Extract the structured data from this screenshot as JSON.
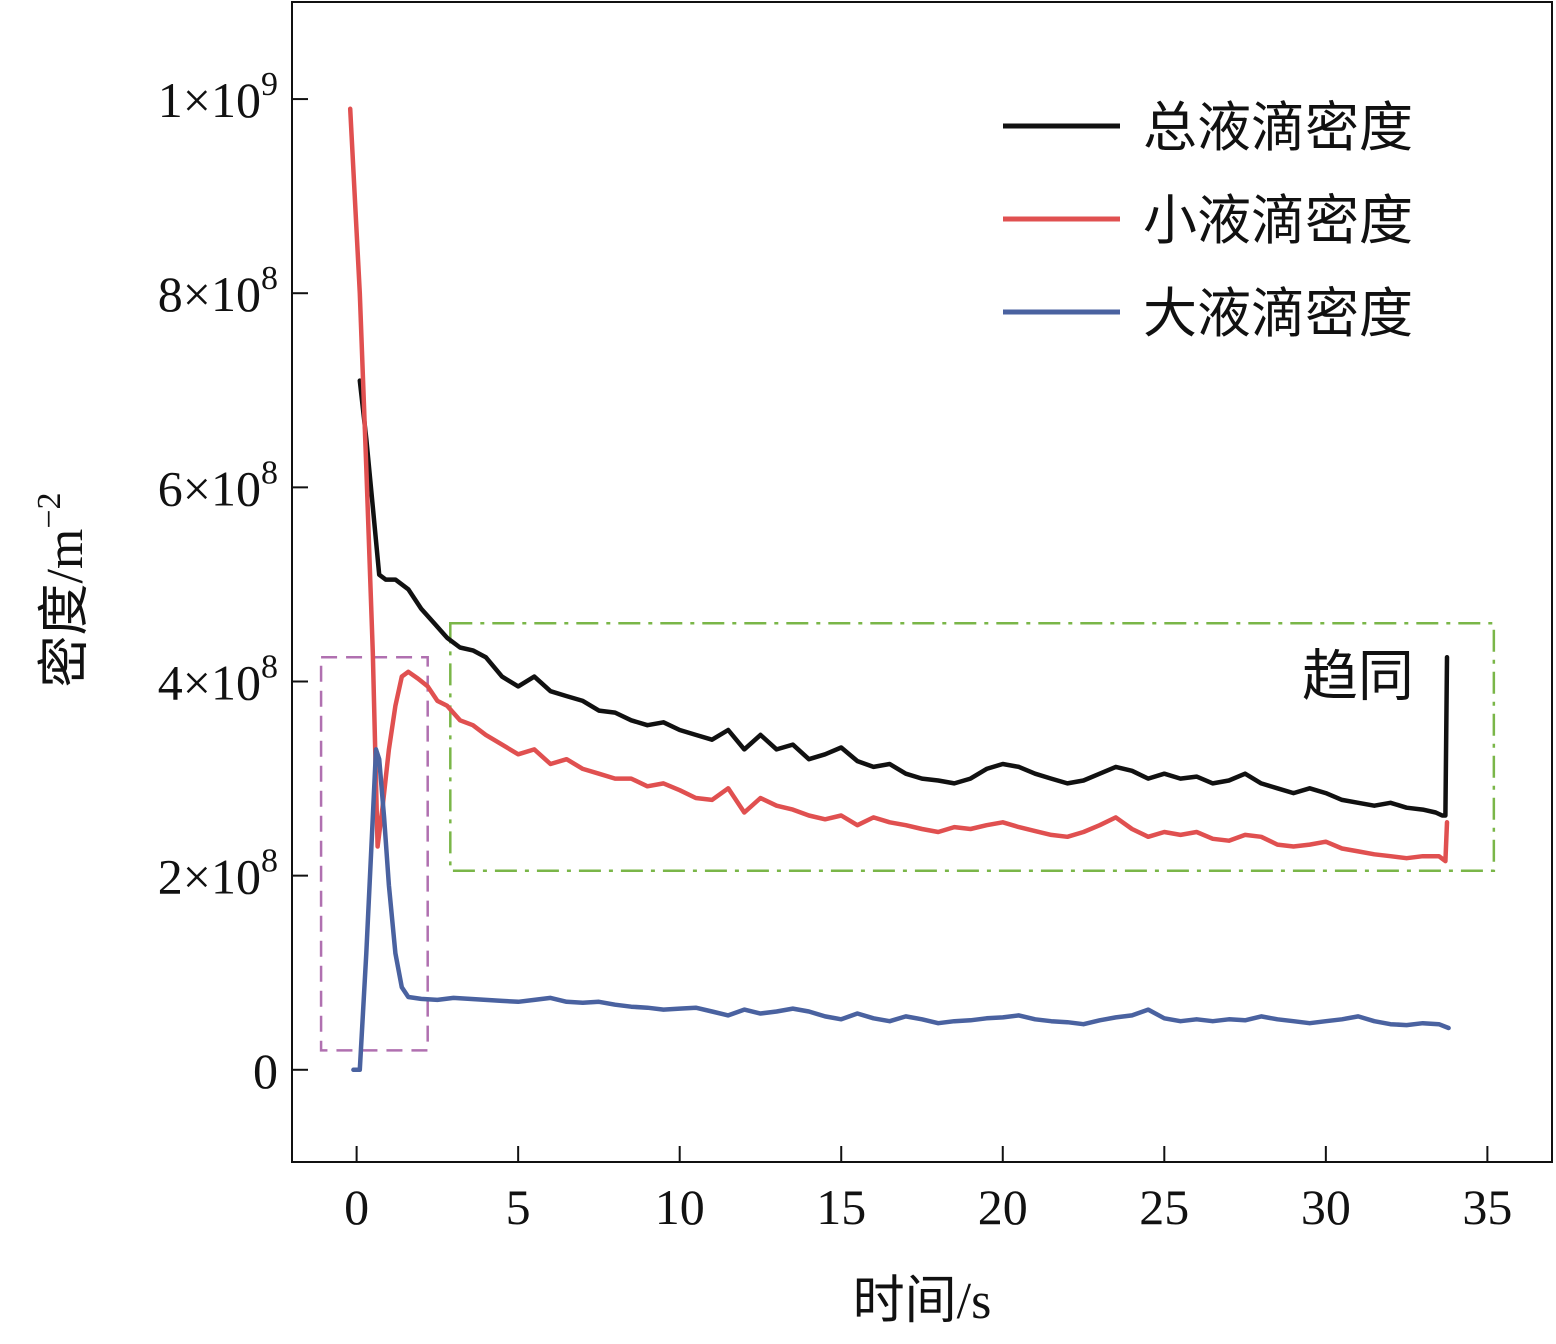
{
  "chart_data": {
    "type": "line",
    "xlabel": "时间/s",
    "ylabel_base": "密度/m",
    "ylabel_exponent": "−2",
    "xlim": [
      -2,
      37
    ],
    "ylim": [
      -95000000,
      1100000000
    ],
    "x_ticks": [
      0,
      5,
      10,
      15,
      20,
      25,
      30,
      35
    ],
    "x_tick_labels": [
      "0",
      "5",
      "10",
      "15",
      "20",
      "25",
      "30",
      "35"
    ],
    "y_ticks": [
      {
        "value": 0,
        "mantissa": "0",
        "exponent": ""
      },
      {
        "value": 200000000,
        "mantissa": "2×10",
        "exponent": "8"
      },
      {
        "value": 400000000,
        "mantissa": "4×10",
        "exponent": "8"
      },
      {
        "value": 600000000,
        "mantissa": "6×10",
        "exponent": "8"
      },
      {
        "value": 800000000,
        "mantissa": "8×10",
        "exponent": "8"
      },
      {
        "value": 1000000000,
        "mantissa": "1×10",
        "exponent": "9"
      }
    ],
    "legend_position": "top-right",
    "grid": false,
    "series": [
      {
        "name": "总液滴密度",
        "color": "#111111",
        "x": [
          0.1,
          0.3,
          0.5,
          0.7,
          0.9,
          1.2,
          1.6,
          2.0,
          2.4,
          2.8,
          3.2,
          3.6,
          4.0,
          4.5,
          5.0,
          5.5,
          6.0,
          6.5,
          7.0,
          7.5,
          8.0,
          8.5,
          9.0,
          9.5,
          10.0,
          10.5,
          11.0,
          11.5,
          12.0,
          12.5,
          13.0,
          13.5,
          14.0,
          14.5,
          15.0,
          15.5,
          16.0,
          16.5,
          17.0,
          17.5,
          18.0,
          18.5,
          19.0,
          19.5,
          20.0,
          20.5,
          21.0,
          21.5,
          22.0,
          22.5,
          23.0,
          23.5,
          24.0,
          24.5,
          25.0,
          25.5,
          26.0,
          26.5,
          27.0,
          27.5,
          28.0,
          28.5,
          29.0,
          29.5,
          30.0,
          30.5,
          31.0,
          31.5,
          32.0,
          32.5,
          33.0,
          33.4,
          33.6,
          33.7,
          33.75
        ],
        "y": [
          710000000,
          650000000,
          580000000,
          510000000,
          505000000,
          505000000,
          495000000,
          475000000,
          460000000,
          445000000,
          435000000,
          432000000,
          425000000,
          405000000,
          395000000,
          405000000,
          390000000,
          385000000,
          380000000,
          370000000,
          368000000,
          360000000,
          355000000,
          358000000,
          350000000,
          345000000,
          340000000,
          350000000,
          330000000,
          345000000,
          330000000,
          335000000,
          320000000,
          325000000,
          332000000,
          318000000,
          312000000,
          315000000,
          305000000,
          300000000,
          298000000,
          295000000,
          300000000,
          310000000,
          315000000,
          312000000,
          305000000,
          300000000,
          295000000,
          298000000,
          305000000,
          312000000,
          308000000,
          300000000,
          305000000,
          300000000,
          302000000,
          295000000,
          298000000,
          305000000,
          295000000,
          290000000,
          285000000,
          290000000,
          285000000,
          278000000,
          275000000,
          272000000,
          275000000,
          270000000,
          268000000,
          265000000,
          262000000,
          262000000,
          425000000
        ]
      },
      {
        "name": "小液滴密度",
        "color": "#e05050",
        "x": [
          -0.2,
          0.1,
          0.3,
          0.5,
          0.65,
          0.8,
          1.0,
          1.2,
          1.4,
          1.6,
          1.9,
          2.2,
          2.5,
          2.8,
          3.2,
          3.6,
          4.0,
          4.5,
          5.0,
          5.5,
          6.0,
          6.5,
          7.0,
          7.5,
          8.0,
          8.5,
          9.0,
          9.5,
          10.0,
          10.5,
          11.0,
          11.5,
          12.0,
          12.5,
          13.0,
          13.5,
          14.0,
          14.5,
          15.0,
          15.5,
          16.0,
          16.5,
          17.0,
          17.5,
          18.0,
          18.5,
          19.0,
          19.5,
          20.0,
          20.5,
          21.0,
          21.5,
          22.0,
          22.5,
          23.0,
          23.5,
          24.0,
          24.5,
          25.0,
          25.5,
          26.0,
          26.5,
          27.0,
          27.5,
          28.0,
          28.5,
          29.0,
          29.5,
          30.0,
          30.5,
          31.0,
          31.5,
          32.0,
          32.5,
          33.0,
          33.5,
          33.7,
          33.75
        ],
        "y": [
          990000000,
          800000000,
          620000000,
          430000000,
          230000000,
          270000000,
          330000000,
          375000000,
          405000000,
          410000000,
          403000000,
          395000000,
          380000000,
          375000000,
          360000000,
          355000000,
          345000000,
          335000000,
          325000000,
          330000000,
          315000000,
          320000000,
          310000000,
          305000000,
          300000000,
          300000000,
          292000000,
          295000000,
          288000000,
          280000000,
          278000000,
          290000000,
          265000000,
          280000000,
          272000000,
          268000000,
          262000000,
          258000000,
          262000000,
          252000000,
          260000000,
          255000000,
          252000000,
          248000000,
          245000000,
          250000000,
          248000000,
          252000000,
          255000000,
          250000000,
          246000000,
          242000000,
          240000000,
          245000000,
          252000000,
          260000000,
          248000000,
          240000000,
          245000000,
          242000000,
          245000000,
          238000000,
          236000000,
          242000000,
          240000000,
          232000000,
          230000000,
          232000000,
          235000000,
          228000000,
          225000000,
          222000000,
          220000000,
          218000000,
          220000000,
          220000000,
          215000000,
          255000000
        ]
      },
      {
        "name": "大液滴密度",
        "color": "#4a62a0",
        "x": [
          -0.1,
          0.1,
          0.3,
          0.5,
          0.6,
          0.7,
          0.85,
          1.0,
          1.2,
          1.4,
          1.6,
          2.0,
          2.5,
          3.0,
          3.5,
          4.0,
          4.5,
          5.0,
          5.5,
          6.0,
          6.5,
          7.0,
          7.5,
          8.0,
          8.5,
          9.0,
          9.5,
          10.0,
          10.5,
          11.0,
          11.5,
          12.0,
          12.5,
          13.0,
          13.5,
          14.0,
          14.5,
          15.0,
          15.5,
          16.0,
          16.5,
          17.0,
          17.5,
          18.0,
          18.5,
          19.0,
          19.5,
          20.0,
          20.5,
          21.0,
          21.5,
          22.0,
          22.5,
          23.0,
          23.5,
          24.0,
          24.5,
          25.0,
          25.5,
          26.0,
          26.5,
          27.0,
          27.5,
          28.0,
          28.5,
          29.0,
          29.5,
          30.0,
          30.5,
          31.0,
          31.5,
          32.0,
          32.5,
          33.0,
          33.5,
          33.8
        ],
        "y": [
          0,
          0,
          120000000,
          260000000,
          330000000,
          320000000,
          260000000,
          190000000,
          120000000,
          85000000,
          75000000,
          73000000,
          72000000,
          74000000,
          73000000,
          72000000,
          71000000,
          70000000,
          72000000,
          74000000,
          70000000,
          69000000,
          70000000,
          67000000,
          65000000,
          64000000,
          62000000,
          63000000,
          64000000,
          60000000,
          56000000,
          62000000,
          58000000,
          60000000,
          63000000,
          60000000,
          55000000,
          52000000,
          58000000,
          53000000,
          50000000,
          55000000,
          52000000,
          48000000,
          50000000,
          51000000,
          53000000,
          54000000,
          56000000,
          52000000,
          50000000,
          49000000,
          47000000,
          51000000,
          54000000,
          56000000,
          62000000,
          53000000,
          50000000,
          52000000,
          50000000,
          52000000,
          51000000,
          55000000,
          52000000,
          50000000,
          48000000,
          50000000,
          52000000,
          55000000,
          50000000,
          47000000,
          46000000,
          48000000,
          47000000,
          43000000
        ]
      }
    ],
    "annotations": [
      {
        "label": "",
        "color": "#b070b0",
        "style": "dashed",
        "x_range": [
          -1.1,
          2.2
        ],
        "y_range": [
          20000000,
          425000000
        ]
      },
      {
        "label": "趋同",
        "color": "#7ab648",
        "style": "dash-dot",
        "x_range": [
          2.9,
          35.2
        ],
        "y_range": [
          205000000,
          460000000
        ]
      }
    ]
  }
}
